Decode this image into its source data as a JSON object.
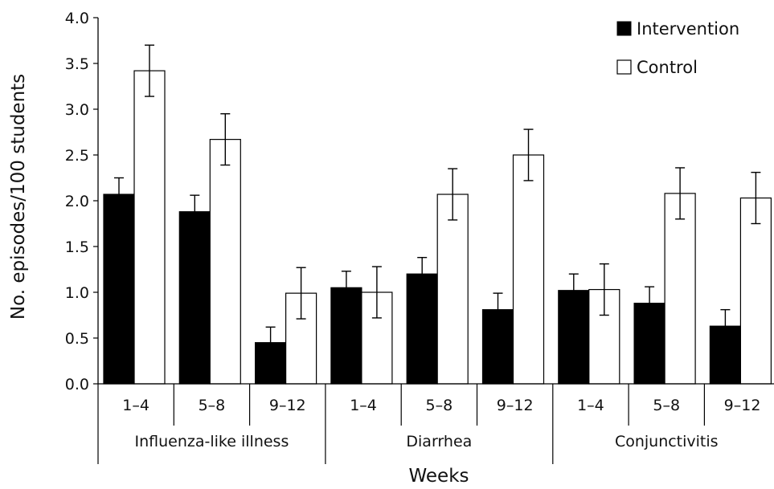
{
  "chart_data": {
    "type": "bar",
    "ylabel": "No. episodes/100 students",
    "xlabel": "Weeks",
    "ylim": [
      0,
      4.0
    ],
    "yticks": [
      "0.0",
      "0.5",
      "1.0",
      "1.5",
      "2.0",
      "2.5",
      "3.0",
      "3.5",
      "4.0"
    ],
    "groups": [
      "Influenza-like illness",
      "Diarrhea",
      "Conjunctivitis"
    ],
    "categories": [
      "1–4",
      "5–8",
      "9–12",
      "1–4",
      "5–8",
      "9–12",
      "1–4",
      "5–8",
      "9–12"
    ],
    "series": [
      {
        "name": "Intervention",
        "color": "#000000",
        "values": [
          2.07,
          1.88,
          0.45,
          1.05,
          1.2,
          0.81,
          1.02,
          0.88,
          0.63
        ],
        "error": [
          0.18,
          0.18,
          0.17,
          0.18,
          0.18,
          0.18,
          0.18,
          0.18,
          0.18
        ]
      },
      {
        "name": "Control",
        "color": "#ffffff",
        "values": [
          3.42,
          2.67,
          0.99,
          1.0,
          2.07,
          2.5,
          1.03,
          2.08,
          2.03
        ],
        "error": [
          0.28,
          0.28,
          0.28,
          0.28,
          0.28,
          0.28,
          0.28,
          0.28,
          0.28
        ]
      }
    ],
    "legend": "top-right",
    "grid": false
  }
}
